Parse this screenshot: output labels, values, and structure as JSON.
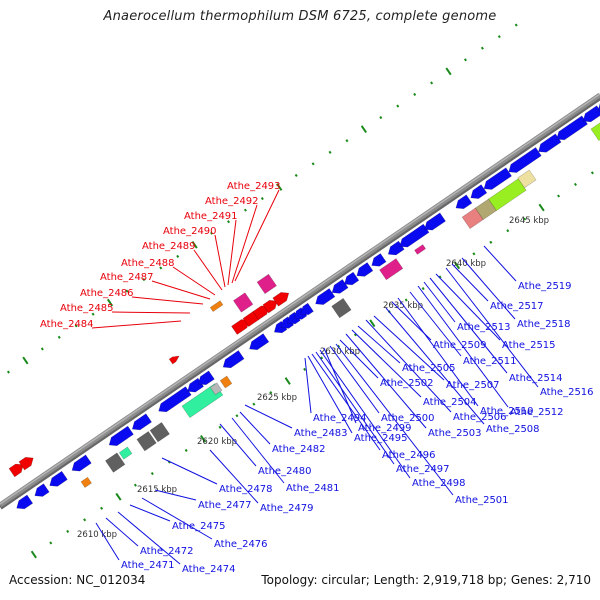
{
  "title": "Anaerocellum thermophilum DSM 6725, complete genome",
  "footer": {
    "accession": "Accession: NC_012034",
    "summary": "Topology: circular; Length: 2,919,718 bp; Genes: 2,710"
  },
  "colors": {
    "backbone": "#8c8c8c",
    "tick": "#1a8a1a",
    "forward_label": "#e8000b",
    "reverse_label": "#1010e0",
    "cds_blue": "#0a0af0",
    "cds_red": "#f00000",
    "magenta": "#e0208a",
    "gray_box": "#606060",
    "teal": "#30f0a0",
    "orange": "#f08010",
    "lime": "#98ee20",
    "khaki": "#b0a870",
    "salmon": "#e88080",
    "pale_yellow": "#eee0a0",
    "silver": "#b8b8b8"
  },
  "kbp_marks": [
    "2610 kbp",
    "2615 kbp",
    "2620 kbp",
    "2625 kbp",
    "2630 kbp",
    "2635 kbp",
    "2640 kbp",
    "2645 kbp"
  ],
  "forward_labels": [
    "Athe_2484",
    "Athe_2485",
    "Athe_2486",
    "Athe_2487",
    "Athe_2488",
    "Athe_2489",
    "Athe_2490",
    "Athe_2491",
    "Athe_2492",
    "Athe_2493"
  ],
  "reverse_labels": [
    "Athe_2471",
    "Athe_2472",
    "Athe_2474",
    "Athe_2475",
    "Athe_2476",
    "Athe_2477",
    "Athe_2478",
    "Athe_2479",
    "Athe_2480",
    "Athe_2481",
    "Athe_2482",
    "Athe_2483",
    "Athe_2494",
    "Athe_2495",
    "Athe_2496",
    "Athe_2497",
    "Athe_2498",
    "Athe_2499",
    "Athe_2500",
    "Athe_2501",
    "Athe_2502",
    "Athe_2503",
    "Athe_2504",
    "Athe_2505",
    "Athe_2506",
    "Athe_2507",
    "Athe_2508",
    "Athe_2509",
    "Athe_2510",
    "Athe_2511",
    "Athe_2512",
    "Athe_2513",
    "Athe_2514",
    "Athe_2515",
    "Athe_2516",
    "Athe_2517",
    "Athe_2518",
    "Athe_2519"
  ]
}
